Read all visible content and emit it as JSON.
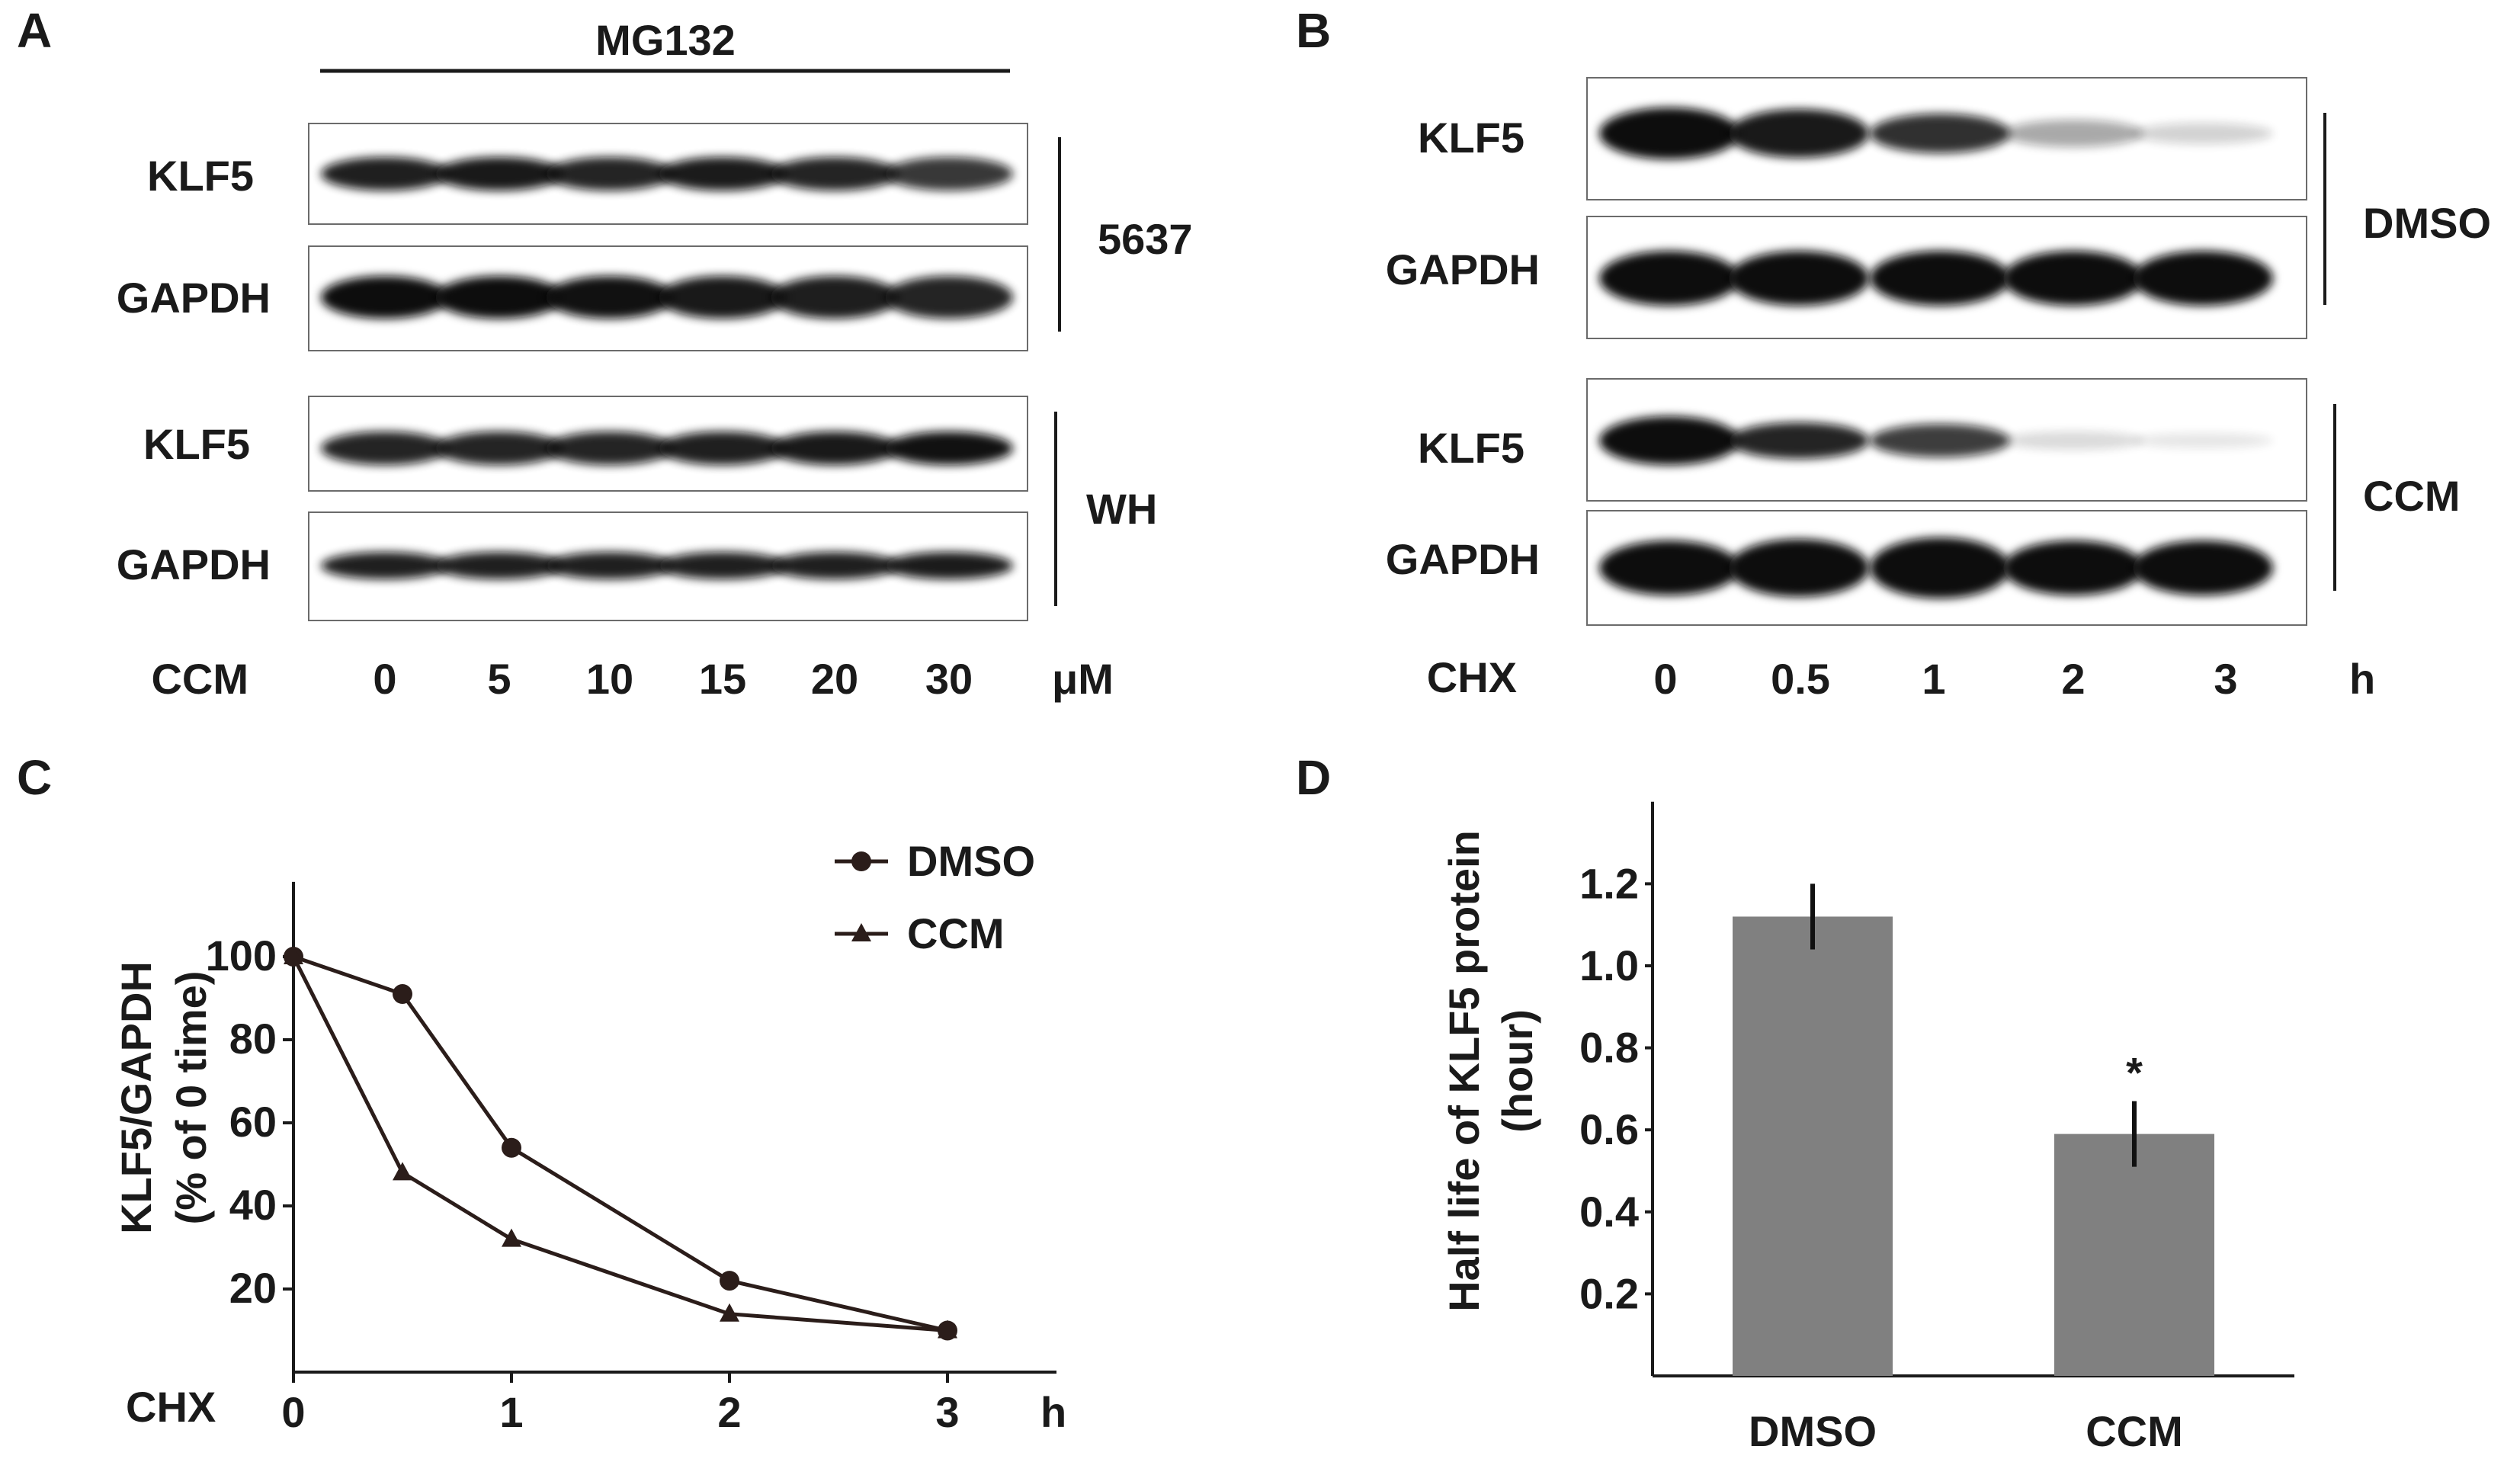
{
  "panels": {
    "A": {
      "letter": "A",
      "treatment": "MG132",
      "cell_lines": [
        {
          "name": "5637",
          "rows": [
            "KLF5",
            "GAPDH"
          ]
        },
        {
          "name": "WH",
          "rows": [
            "KLF5",
            "GAPDH"
          ]
        }
      ],
      "x_label": "CCM",
      "lanes": [
        "0",
        "5",
        "10",
        "15",
        "20",
        "30"
      ],
      "unit": "μM"
    },
    "B": {
      "letter": "B",
      "groups": [
        {
          "name": "DMSO",
          "rows": [
            "KLF5",
            "GAPDH"
          ]
        },
        {
          "name": "CCM",
          "rows": [
            "KLF5",
            "GAPDH"
          ]
        }
      ],
      "x_label": "CHX",
      "lanes": [
        "0",
        "0.5",
        "1",
        "2",
        "3"
      ],
      "unit": "h"
    },
    "C": {
      "letter": "C"
    },
    "D": {
      "letter": "D"
    }
  },
  "chart_data": [
    {
      "type": "line",
      "panel": "C",
      "ylabel": "KLF5/GAPDH",
      "ylabel2": "(% of  0 time)",
      "xlabel": "CHX",
      "xunit": "h",
      "x": [
        0,
        0.5,
        1,
        2,
        3
      ],
      "x_ticks": [
        "0",
        "1",
        "2",
        "3"
      ],
      "y_ticks": [
        "20",
        "40",
        "60",
        "80",
        "100"
      ],
      "xlim": [
        0,
        3.5
      ],
      "ylim": [
        0,
        118
      ],
      "series": [
        {
          "name": "DMSO",
          "marker": "circle",
          "values": [
            100,
            91,
            54,
            22,
            10
          ]
        },
        {
          "name": "CCM",
          "marker": "triangle",
          "values": [
            100,
            48,
            32,
            14,
            10
          ]
        }
      ],
      "legend_position": "top-right",
      "color": "#2b1d1a"
    },
    {
      "type": "bar",
      "panel": "D",
      "categories": [
        "DMSO",
        "CCM"
      ],
      "values": [
        1.12,
        0.59
      ],
      "errors": [
        0.08,
        0.08
      ],
      "annotations": [
        "",
        "*"
      ],
      "ylabel": "Half life of KLF5 protein",
      "ylabel2": "(hour)",
      "y_ticks": [
        "0.2",
        "0.4",
        "0.6",
        "0.8",
        "1.0",
        "1.2"
      ],
      "ylim": [
        0,
        1.4
      ],
      "bar_color": "#808080"
    }
  ]
}
